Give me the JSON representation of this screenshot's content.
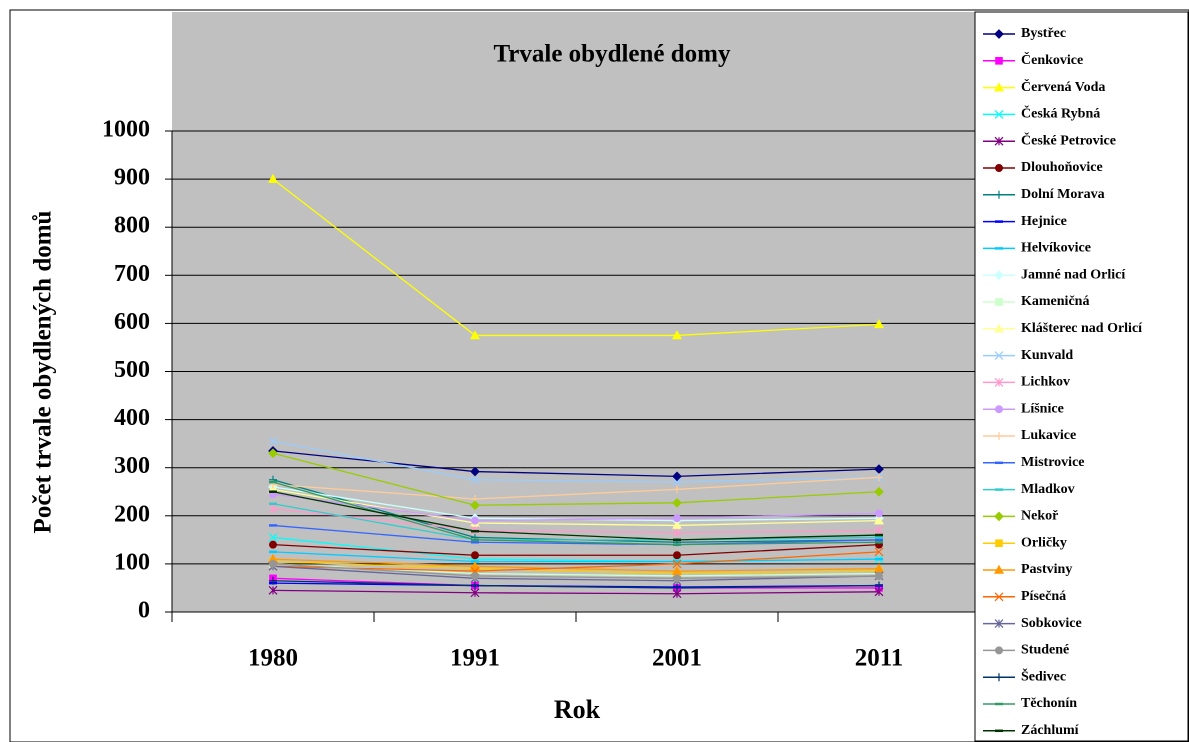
{
  "chart_data": {
    "type": "line",
    "title": "Trvale obydlené domy",
    "xlabel": "Rok",
    "ylabel": "Počet trvale obydlených domů",
    "categories": [
      "1980",
      "1991",
      "2001",
      "2011"
    ],
    "ylim": [
      0,
      1000
    ],
    "yticks": [
      0,
      100,
      200,
      300,
      400,
      500,
      600,
      700,
      800,
      900,
      1000
    ],
    "grid": true,
    "legend": "right",
    "series": [
      {
        "name": "Bystřec",
        "color": "#000080",
        "marker": "diamond",
        "values": [
          335,
          292,
          282,
          297
        ]
      },
      {
        "name": "Čenkovice",
        "color": "#ff00ff",
        "marker": "square",
        "values": [
          70,
          55,
          50,
          50
        ]
      },
      {
        "name": "Červená Voda",
        "color": "#ffff00",
        "marker": "triangle",
        "values": [
          900,
          575,
          575,
          598
        ]
      },
      {
        "name": "Česká Rybná",
        "color": "#00ffff",
        "marker": "x",
        "values": [
          155,
          110,
          105,
          110
        ]
      },
      {
        "name": "České Petrovice",
        "color": "#800080",
        "marker": "star",
        "values": [
          45,
          40,
          38,
          42
        ]
      },
      {
        "name": "Dlouhoňovice",
        "color": "#800000",
        "marker": "circle",
        "values": [
          140,
          118,
          118,
          140
        ]
      },
      {
        "name": "Dolní Morava",
        "color": "#008080",
        "marker": "plus",
        "values": [
          275,
          155,
          145,
          150
        ]
      },
      {
        "name": "Hejnice",
        "color": "#0000ff",
        "marker": "dash",
        "values": [
          60,
          55,
          52,
          55
        ]
      },
      {
        "name": "Helvíkovice",
        "color": "#00ccff",
        "marker": "dash",
        "values": [
          125,
          105,
          105,
          110
        ]
      },
      {
        "name": "Jamné nad Orlicí",
        "color": "#ccffff",
        "marker": "diamond",
        "values": [
          260,
          195,
          190,
          195
        ]
      },
      {
        "name": "Kameničná",
        "color": "#ccffcc",
        "marker": "square",
        "values": [
          100,
          80,
          75,
          80
        ]
      },
      {
        "name": "Klášterec nad Orlicí",
        "color": "#ffff99",
        "marker": "triangle",
        "values": [
          255,
          185,
          180,
          190
        ]
      },
      {
        "name": "Kunvald",
        "color": "#99ccff",
        "marker": "x",
        "values": [
          355,
          275,
          270,
          280
        ]
      },
      {
        "name": "Lichkov",
        "color": "#ff99cc",
        "marker": "star",
        "values": [
          215,
          170,
          165,
          170
        ]
      },
      {
        "name": "Líšnice",
        "color": "#cc99ff",
        "marker": "circle",
        "values": [
          245,
          190,
          195,
          205
        ]
      },
      {
        "name": "Lukavice",
        "color": "#ffcc99",
        "marker": "plus",
        "values": [
          265,
          235,
          255,
          280
        ]
      },
      {
        "name": "Mistrovice",
        "color": "#3366ff",
        "marker": "dash",
        "values": [
          180,
          145,
          140,
          150
        ]
      },
      {
        "name": "Mladkov",
        "color": "#33cccc",
        "marker": "dash",
        "values": [
          225,
          150,
          150,
          155
        ]
      },
      {
        "name": "Nekoř",
        "color": "#99cc00",
        "marker": "diamond",
        "values": [
          330,
          222,
          227,
          250
        ]
      },
      {
        "name": "Orličky",
        "color": "#ffcc00",
        "marker": "square",
        "values": [
          105,
          90,
          80,
          85
        ]
      },
      {
        "name": "Pastviny",
        "color": "#ff9900",
        "marker": "triangle",
        "values": [
          110,
          95,
          85,
          90
        ]
      },
      {
        "name": "Písečná",
        "color": "#ff6600",
        "marker": "x",
        "values": [
          95,
          85,
          100,
          125
        ]
      },
      {
        "name": "Sobkovice",
        "color": "#666699",
        "marker": "star",
        "values": [
          95,
          70,
          65,
          75
        ]
      },
      {
        "name": "Studené",
        "color": "#969696",
        "marker": "circle",
        "values": [
          100,
          75,
          70,
          75
        ]
      },
      {
        "name": "Šedivec",
        "color": "#003366",
        "marker": "plus",
        "values": [
          65,
          55,
          50,
          55
        ]
      },
      {
        "name": "Těchonín",
        "color": "#339966",
        "marker": "dash",
        "values": [
          270,
          150,
          140,
          145
        ]
      },
      {
        "name": "Záchlumí",
        "color": "#003300",
        "marker": "dash",
        "values": [
          250,
          168,
          150,
          160
        ]
      }
    ]
  }
}
